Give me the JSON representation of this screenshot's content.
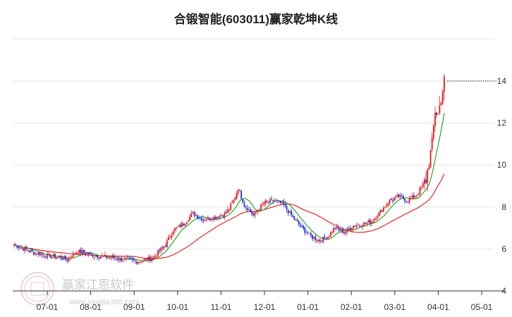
{
  "chart_data": {
    "type": "candlestick",
    "title": "合锻智能(603011)赢家乾坤K线",
    "y_ticks": [
      4,
      6,
      8,
      10,
      12,
      14
    ],
    "ylim": [
      4,
      14
    ],
    "x_ticks": [
      "07-01",
      "08-01",
      "09-01",
      "10-01",
      "11-01",
      "12-01",
      "01-01",
      "02-01",
      "03-01",
      "04-01",
      "05-01"
    ],
    "colors": {
      "up": "#e8141b",
      "down": "#1d2fd6",
      "short_ma": "#18a018",
      "long_ma": "#e8141b",
      "grid": "#e6e6e6",
      "axis": "#333333"
    },
    "price_path": [
      [
        0,
        6.2
      ],
      [
        10,
        5.9
      ],
      [
        20,
        5.7
      ],
      [
        30,
        5.6
      ],
      [
        35,
        5.5
      ],
      [
        42,
        5.9
      ],
      [
        52,
        5.7
      ],
      [
        62,
        5.6
      ],
      [
        72,
        5.5
      ],
      [
        82,
        5.4
      ],
      [
        92,
        5.6
      ],
      [
        100,
        6.2
      ],
      [
        105,
        6.9
      ],
      [
        112,
        7.2
      ],
      [
        118,
        7.7
      ],
      [
        125,
        7.4
      ],
      [
        132,
        7.5
      ],
      [
        140,
        7.7
      ],
      [
        145,
        8.3
      ],
      [
        148,
        8.9
      ],
      [
        152,
        8.1
      ],
      [
        158,
        7.6
      ],
      [
        165,
        8.2
      ],
      [
        172,
        8.3
      ],
      [
        178,
        8.1
      ],
      [
        184,
        7.5
      ],
      [
        190,
        7.0
      ],
      [
        196,
        6.6
      ],
      [
        202,
        6.4
      ],
      [
        207,
        6.6
      ],
      [
        212,
        7.0
      ],
      [
        218,
        6.8
      ],
      [
        224,
        7.1
      ],
      [
        230,
        7.2
      ],
      [
        236,
        7.3
      ],
      [
        242,
        7.8
      ],
      [
        248,
        8.3
      ],
      [
        254,
        8.5
      ],
      [
        260,
        8.3
      ],
      [
        266,
        8.6
      ],
      [
        272,
        9.3
      ],
      [
        276,
        11.0
      ],
      [
        278,
        12.6
      ],
      [
        280,
        12.4
      ],
      [
        282,
        13.2
      ],
      [
        284,
        14.0
      ]
    ],
    "watermark": {
      "brand": "赢家江恩软件",
      "url": "www.yingjia360.com"
    }
  }
}
